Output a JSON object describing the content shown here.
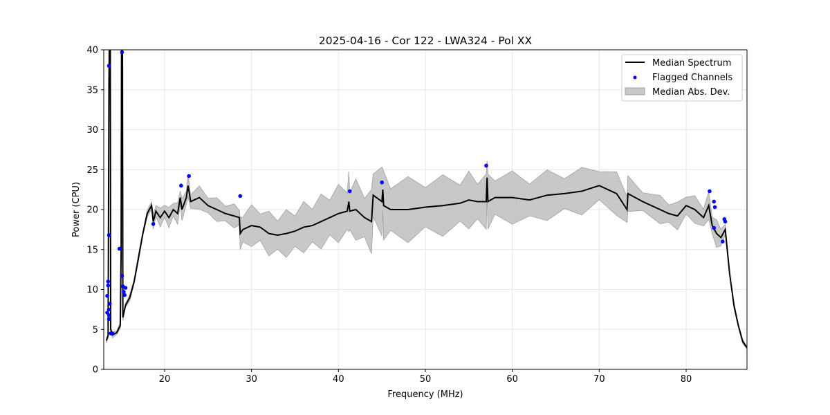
{
  "chart_data": {
    "type": "line",
    "title": "2025-04-16 - Cor 122 - LWA324 - Pol XX",
    "xlabel": "Frequency (MHz)",
    "ylabel": "Power (CPU)",
    "xlim": [
      13,
      87
    ],
    "ylim": [
      0,
      40
    ],
    "xticks": [
      20,
      30,
      40,
      50,
      60,
      70,
      80
    ],
    "yticks": [
      0,
      5,
      10,
      15,
      20,
      25,
      30,
      35,
      40
    ],
    "grid": true,
    "legend_position": "top-right",
    "legend": [
      "Median Spectrum",
      "Flagged Channels",
      "Median Abs. Dev."
    ],
    "colors": {
      "median": "#000000",
      "flagged": "#0000ff",
      "mad": "#c8c8c8",
      "mad_edge": "#a0a0a0"
    },
    "median_spectrum": [
      [
        13.3,
        3.6
      ],
      [
        13.5,
        4.2
      ],
      [
        13.6,
        36
      ],
      [
        13.65,
        42
      ],
      [
        13.75,
        42
      ],
      [
        13.8,
        5
      ],
      [
        14.0,
        4.3
      ],
      [
        14.5,
        4.6
      ],
      [
        14.9,
        5.5
      ],
      [
        15.0,
        15
      ],
      [
        15.05,
        42
      ],
      [
        15.15,
        42
      ],
      [
        15.2,
        6.5
      ],
      [
        15.5,
        8
      ],
      [
        16,
        9
      ],
      [
        16.5,
        11
      ],
      [
        17,
        14
      ],
      [
        17.5,
        17
      ],
      [
        18,
        19.5
      ],
      [
        18.5,
        20.5
      ],
      [
        18.7,
        18.5
      ],
      [
        19,
        19.8
      ],
      [
        19.5,
        19
      ],
      [
        20,
        19.8
      ],
      [
        20.5,
        19
      ],
      [
        21,
        20
      ],
      [
        21.5,
        19.5
      ],
      [
        21.8,
        21.5
      ],
      [
        22,
        20
      ],
      [
        22.5,
        21.5
      ],
      [
        22.7,
        23
      ],
      [
        23,
        21
      ],
      [
        24,
        21.5
      ],
      [
        25,
        20.5
      ],
      [
        26,
        20
      ],
      [
        27,
        19.5
      ],
      [
        28,
        19.2
      ],
      [
        28.6,
        19
      ],
      [
        28.7,
        17
      ],
      [
        29,
        17.5
      ],
      [
        30,
        18
      ],
      [
        31,
        17.8
      ],
      [
        32,
        17
      ],
      [
        33,
        16.8
      ],
      [
        34,
        17
      ],
      [
        35,
        17.3
      ],
      [
        36,
        17.8
      ],
      [
        37,
        18
      ],
      [
        38,
        18.5
      ],
      [
        39,
        19
      ],
      [
        40,
        19.5
      ],
      [
        41,
        19.8
      ],
      [
        41.2,
        21
      ],
      [
        41.3,
        19.8
      ],
      [
        42,
        20
      ],
      [
        43,
        19
      ],
      [
        43.8,
        18.5
      ],
      [
        44,
        21.8
      ],
      [
        45,
        21
      ],
      [
        45.1,
        22.5
      ],
      [
        45.2,
        20.5
      ],
      [
        46,
        20
      ],
      [
        48,
        20
      ],
      [
        50,
        20.3
      ],
      [
        52,
        20.5
      ],
      [
        54,
        20.8
      ],
      [
        55,
        21.2
      ],
      [
        56,
        21
      ],
      [
        57,
        21
      ],
      [
        57.1,
        24
      ],
      [
        57.2,
        21
      ],
      [
        58,
        21.5
      ],
      [
        60,
        21.5
      ],
      [
        62,
        21.2
      ],
      [
        64,
        21.8
      ],
      [
        66,
        22
      ],
      [
        68,
        22.3
      ],
      [
        70,
        23
      ],
      [
        72,
        22
      ],
      [
        73.2,
        20
      ],
      [
        73.3,
        22
      ],
      [
        75,
        21
      ],
      [
        77,
        20
      ],
      [
        78,
        19.5
      ],
      [
        79,
        19.2
      ],
      [
        80,
        20.5
      ],
      [
        81,
        20
      ],
      [
        82,
        19
      ],
      [
        82.6,
        20.5
      ],
      [
        83,
        18
      ],
      [
        83.5,
        17
      ],
      [
        84,
        16.5
      ],
      [
        84.5,
        17.5
      ],
      [
        85,
        12
      ],
      [
        85.5,
        8
      ],
      [
        86,
        5.5
      ],
      [
        86.5,
        3.5
      ],
      [
        87,
        2.7
      ]
    ],
    "mad_halfwidth": [
      [
        13.3,
        0.3
      ],
      [
        18,
        0.4
      ],
      [
        19,
        1.0
      ],
      [
        22,
        1.2
      ],
      [
        25,
        1.3
      ],
      [
        28.6,
        1.3
      ],
      [
        28.8,
        2.2
      ],
      [
        33,
        2.5
      ],
      [
        38,
        3.0
      ],
      [
        43.8,
        3.5
      ],
      [
        44,
        3.8
      ],
      [
        50,
        3.5
      ],
      [
        57,
        3.0
      ],
      [
        63,
        2.8
      ],
      [
        70,
        2.5
      ],
      [
        73.2,
        2.3
      ],
      [
        73.4,
        1.6
      ],
      [
        80,
        1.5
      ],
      [
        84,
        1.5
      ],
      [
        84.6,
        0.4
      ],
      [
        87,
        0.2
      ]
    ],
    "flagged_channels": [
      [
        13.6,
        38
      ],
      [
        13.6,
        16.8
      ],
      [
        13.5,
        11
      ],
      [
        13.5,
        10.5
      ],
      [
        13.4,
        9.2
      ],
      [
        13.4,
        7.1
      ],
      [
        13.6,
        6.8
      ],
      [
        13.6,
        7.5
      ],
      [
        13.7,
        8.2
      ],
      [
        13.6,
        6.3
      ],
      [
        13.8,
        4.5
      ],
      [
        14.0,
        4.5
      ],
      [
        15.1,
        39.7
      ],
      [
        14.8,
        15.1
      ],
      [
        15.1,
        11.7
      ],
      [
        15.2,
        10.4
      ],
      [
        15.3,
        9.7
      ],
      [
        15.5,
        10.2
      ],
      [
        15.4,
        9.3
      ],
      [
        18.7,
        18.2
      ],
      [
        21.9,
        23
      ],
      [
        22.8,
        24.2
      ],
      [
        28.7,
        21.7
      ],
      [
        41.3,
        22.3
      ],
      [
        45.0,
        23.4
      ],
      [
        57.0,
        25.5
      ],
      [
        82.7,
        22.3
      ],
      [
        83.2,
        21
      ],
      [
        83.3,
        20.3
      ],
      [
        83.2,
        17.7
      ],
      [
        84.2,
        16
      ],
      [
        84.4,
        18.8
      ],
      [
        84.5,
        18.5
      ]
    ]
  }
}
